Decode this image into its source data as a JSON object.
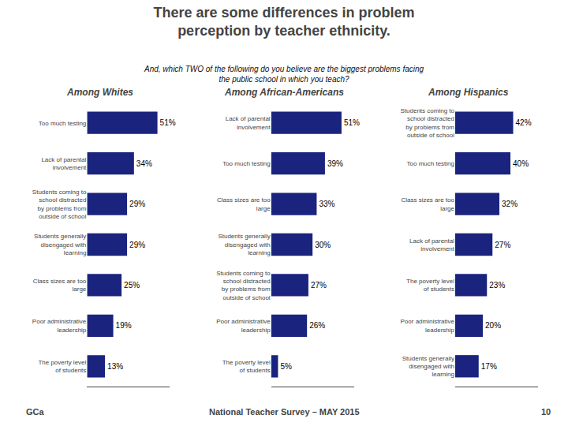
{
  "title": "There are some differences in problem\nperception by teacher ethnicity.",
  "subtitle": "And, which TWO of the following do you believe are the biggest problems facing\nthe public school in which you teach?",
  "annotations": [
    "GCa",
    "National Teacher Survey – MAY 2015",
    "10"
  ],
  "chart_data": [
    {
      "type": "bar",
      "orientation": "horizontal",
      "title": "Among Whites",
      "categories": [
        "Too much testing",
        "Lack of parental\ninvolvement",
        "Students coming to\nschool distracted\nby problems from\noutside of school",
        "Students generally\ndisengaged with\nlearning",
        "Class sizes are too\nlarge",
        "Poor administrative\nleadership",
        "The poverty level\nof students"
      ],
      "values": [
        51,
        34,
        29,
        29,
        25,
        19,
        13
      ],
      "value_labels": [
        "51%",
        "34%",
        "29%",
        "29%",
        "25%",
        "19%",
        "13%"
      ],
      "color": "#1a237e",
      "data_labels": true,
      "tick_labels": "y",
      "grid": false,
      "xlim": [
        0,
        60
      ],
      "xticks": []
    },
    {
      "type": "bar",
      "orientation": "horizontal",
      "title": "Among African-Americans",
      "categories": [
        "Lack of parental\ninvolvement",
        "Too much testing",
        "Class sizes are too\nlarge",
        "Students generally\ndisengaged with\nlearning",
        "Students coming to\nschool distracted\nby problems from\noutside of school",
        "Poor administrative\nleadership",
        "The poverty level\nof students"
      ],
      "values": [
        51,
        39,
        33,
        30,
        27,
        26,
        5
      ],
      "value_labels": [
        "51%",
        "39%",
        "33%",
        "30%",
        "27%",
        "26%",
        "5%"
      ],
      "color": "#1a237e",
      "data_labels": true,
      "tick_labels": "y",
      "grid": false,
      "xlim": [
        0,
        60
      ],
      "xticks": []
    },
    {
      "type": "bar",
      "orientation": "horizontal",
      "title": "Among Hispanics",
      "categories": [
        "Students coming to\nschool distracted\nby problems from\noutside of school",
        "Too much testing",
        "Class sizes are too\nlarge",
        "Lack of parental\ninvolvement",
        "The poverty level\nof students",
        "Poor administrative\nleadership",
        "Students generally\ndisengaged with\nlearning"
      ],
      "values": [
        42,
        40,
        32,
        27,
        23,
        20,
        17
      ],
      "value_labels": [
        "42%",
        "40%",
        "32%",
        "27%",
        "23%",
        "20%",
        "17%"
      ],
      "color": "#1a237e",
      "data_labels": true,
      "tick_labels": "y",
      "grid": false,
      "xlim": [
        0,
        60
      ],
      "xticks": []
    }
  ]
}
